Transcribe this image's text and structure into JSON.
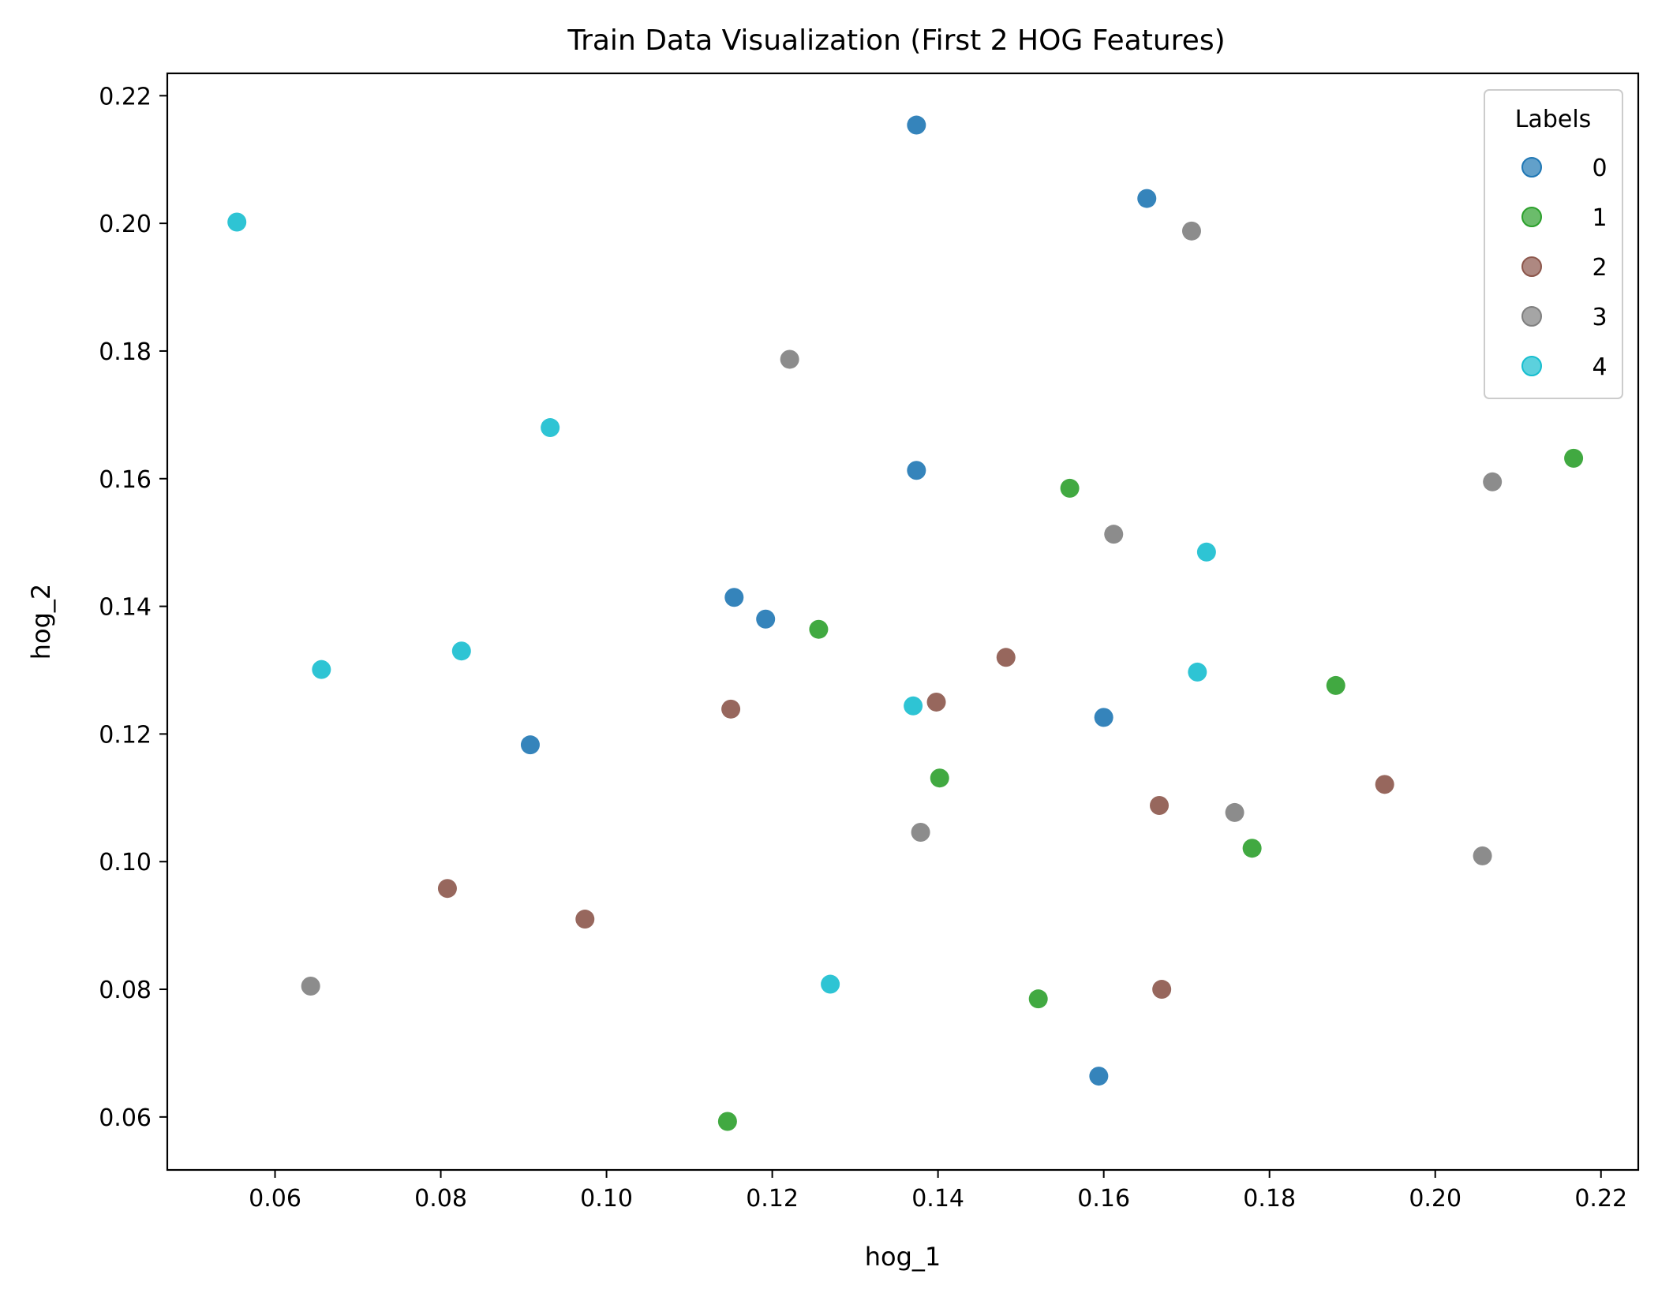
{
  "chart_data": {
    "type": "scatter",
    "title": "Train Data Visualization (First 2 HOG Features)",
    "xlabel": "hog_1",
    "ylabel": "hog_2",
    "xlim": [
      0.047,
      0.2245
    ],
    "ylim": [
      0.0517,
      0.2235
    ],
    "xticks": [
      0.06,
      0.08,
      0.1,
      0.12,
      0.14,
      0.16,
      0.18,
      0.2,
      0.22
    ],
    "yticks": [
      0.06,
      0.08,
      0.1,
      0.12,
      0.14,
      0.16,
      0.18,
      0.2,
      0.22
    ],
    "xtick_labels": [
      "0.06",
      "0.08",
      "0.10",
      "0.12",
      "0.14",
      "0.16",
      "0.18",
      "0.20",
      "0.22"
    ],
    "ytick_labels": [
      "0.06",
      "0.08",
      "0.10",
      "0.12",
      "0.14",
      "0.16",
      "0.18",
      "0.20",
      "0.22"
    ],
    "grid": false,
    "legend": {
      "title": "Labels",
      "placement": "top-right"
    },
    "series": [
      {
        "name": "0",
        "color": "#1f77b4",
        "points": [
          [
            0.1374,
            0.2154
          ],
          [
            0.1652,
            0.2039
          ],
          [
            0.1374,
            0.1613
          ],
          [
            0.1154,
            0.1414
          ],
          [
            0.1192,
            0.138
          ],
          [
            0.0908,
            0.1183
          ],
          [
            0.16,
            0.1226
          ],
          [
            0.1594,
            0.0664
          ]
        ]
      },
      {
        "name": "1",
        "color": "#2ca02c",
        "points": [
          [
            0.2167,
            0.1632
          ],
          [
            0.1559,
            0.1585
          ],
          [
            0.1256,
            0.1364
          ],
          [
            0.188,
            0.1276
          ],
          [
            0.1402,
            0.1131
          ],
          [
            0.1779,
            0.1021
          ],
          [
            0.1521,
            0.0785
          ],
          [
            0.1146,
            0.0593
          ]
        ]
      },
      {
        "name": "2",
        "color": "#8c564b",
        "points": [
          [
            0.1482,
            0.132
          ],
          [
            0.1398,
            0.125
          ],
          [
            0.115,
            0.1239
          ],
          [
            0.1667,
            0.1088
          ],
          [
            0.1939,
            0.1121
          ],
          [
            0.0808,
            0.0958
          ],
          [
            0.0974,
            0.091
          ],
          [
            0.167,
            0.08
          ]
        ]
      },
      {
        "name": "3",
        "color": "#7f7f7f",
        "points": [
          [
            0.1706,
            0.1988
          ],
          [
            0.1221,
            0.1787
          ],
          [
            0.2069,
            0.1595
          ],
          [
            0.1612,
            0.1513
          ],
          [
            0.1758,
            0.1077
          ],
          [
            0.1379,
            0.1046
          ],
          [
            0.2057,
            0.1009
          ],
          [
            0.0643,
            0.0805
          ]
        ]
      },
      {
        "name": "4",
        "color": "#17becf",
        "points": [
          [
            0.0554,
            0.2002
          ],
          [
            0.0932,
            0.168
          ],
          [
            0.1724,
            0.1485
          ],
          [
            0.0825,
            0.133
          ],
          [
            0.0656,
            0.1301
          ],
          [
            0.1713,
            0.1297
          ],
          [
            0.137,
            0.1244
          ],
          [
            0.127,
            0.0808
          ]
        ]
      }
    ]
  }
}
